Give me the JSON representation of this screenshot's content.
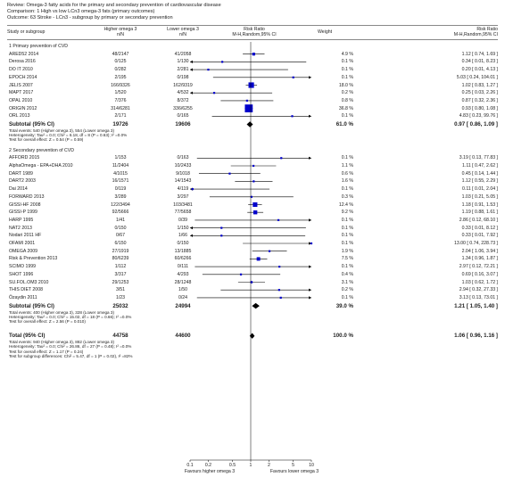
{
  "review": {
    "review_line": "Review: Omega-3 fatty acids for the primary and secondary prevention of cardiovascular disease",
    "comparison_line": "Comparison: 1 High vs low LCn3 omega-3 fats (primary outcomes)",
    "outcome_line": "Outcome: 63 Stroke - LCn3 - subgroup by primary or secondary prevention"
  },
  "columns": {
    "study": "Study or subgroup",
    "high": "Higher omega 3",
    "low": "Lower omega 3",
    "nN": "n/N",
    "rr": "Risk Ratio",
    "rr_method": "M-H,Random,95% CI",
    "weight": "Weight",
    "rr2": "Risk Ratio",
    "rr2_method": "M-H,Random,95% CI"
  },
  "axis": {
    "ticks": [
      "0.1",
      "0.2",
      "0.5",
      "1",
      "2",
      "5",
      "10"
    ],
    "favours_left": "Favours higher omega 3",
    "favours_right": "Favours lower omega 3"
  },
  "colors": {
    "study_marker": "#0000cc",
    "diamond": "#000000"
  },
  "chart_data": {
    "type": "forest",
    "scale": "log",
    "xlim": [
      0.1,
      10
    ],
    "null_line": 1,
    "subgroups": [
      {
        "heading": "1 Primary prevention of CVD",
        "studies": [
          {
            "name": "ARED52 2014",
            "high": "48/2147",
            "low": "41/2058",
            "weight": "4.9 %",
            "ci_text": "1.12 [ 0.74, 1.69 ]",
            "rr": 1.12,
            "lo": 0.74,
            "hi": 1.69,
            "w": 4.9
          },
          {
            "name": "Derosa 2016",
            "high": "0/125",
            "low": "1/130",
            "weight": "0.1 %",
            "ci_text": "0.34 [ 0.01, 8.23 ]",
            "rr": 0.34,
            "lo": 0.01,
            "hi": 8.23,
            "w": 0.1
          },
          {
            "name": "DO IT 2010",
            "high": "0/282",
            "low": "2/281",
            "weight": "0.1 %",
            "ci_text": "0.20 [ 0.01, 4.13 ]",
            "rr": 0.2,
            "lo": 0.01,
            "hi": 4.13,
            "w": 0.1
          },
          {
            "name": "EPOCH 2014",
            "high": "2/195",
            "low": "0/198",
            "weight": "0.1 %",
            "ci_text": "5.03 [ 0.24, 104.01 ]",
            "rr": 5.03,
            "lo": 0.24,
            "hi": 104.01,
            "w": 0.1
          },
          {
            "name": "JELIS 2007",
            "high": "166/9326",
            "low": "162/9319",
            "weight": "18.0 %",
            "ci_text": "1.02 [ 0.83, 1.27 ]",
            "rr": 1.02,
            "lo": 0.83,
            "hi": 1.27,
            "w": 18.0
          },
          {
            "name": "MAPT 2017",
            "high": "1/520",
            "low": "4/532",
            "weight": "0.2 %",
            "ci_text": "0.25 [ 0.03, 2.26 ]",
            "rr": 0.25,
            "lo": 0.03,
            "hi": 2.26,
            "w": 0.2
          },
          {
            "name": "OPAL 2010",
            "high": "7/376",
            "low": "8/372",
            "weight": "0.8 %",
            "ci_text": "0.87 [ 0.32, 2.36 ]",
            "rr": 0.87,
            "lo": 0.32,
            "hi": 2.36,
            "w": 0.8
          },
          {
            "name": "ORIGIN 2012",
            "high": "314/6281",
            "low": "336/6255",
            "weight": "36.8 %",
            "ci_text": "0.93 [ 0.80, 1.08 ]",
            "rr": 0.93,
            "lo": 0.8,
            "hi": 1.08,
            "w": 36.8
          },
          {
            "name": "ORL 2013",
            "high": "2/171",
            "low": "0/165",
            "weight": "0.1 %",
            "ci_text": "4.83 [ 0.23, 99.76 ]",
            "rr": 4.83,
            "lo": 0.23,
            "hi": 99.76,
            "w": 0.1
          }
        ],
        "subtotal": {
          "label": "Subtotal (95% CI)",
          "high": "19726",
          "low": "19606",
          "weight": "61.0 %",
          "ci_text": "0.97 [ 0.86, 1.09 ]",
          "rr": 0.97,
          "lo": 0.86,
          "hi": 1.09
        },
        "notes": [
          "Total events: 540 (Higher omega 3), 554 (Lower omega 3)",
          "Heterogeneity: Tau² = 0.0; Chi² = 6.18, df = 8 (P = 0.63); I² =0.0%",
          "Test for overall effect: Z = 0.54 (P = 0.59)"
        ]
      },
      {
        "heading": "2 Secondary prevention of CVD",
        "studies": [
          {
            "name": "AFFORD 2015",
            "high": "1/153",
            "low": "0/163",
            "weight": "0.1 %",
            "ci_text": "3.19 [ 0.13, 77.83 ]",
            "rr": 3.19,
            "lo": 0.13,
            "hi": 77.83,
            "w": 0.1
          },
          {
            "name": "AlphaOmega - EPA+DHA 2010",
            "high": "11/2404",
            "low": "10/2433",
            "weight": "1.1 %",
            "ci_text": "1.11 [ 0.47, 2.62 ]",
            "rr": 1.11,
            "lo": 0.47,
            "hi": 2.62,
            "w": 1.1
          },
          {
            "name": "DART 1989",
            "high": "4/1015",
            "low": "9/1018",
            "weight": "0.6 %",
            "ci_text": "0.45 [ 0.14, 1.44 ]",
            "rr": 0.45,
            "lo": 0.14,
            "hi": 1.44,
            "w": 0.6
          },
          {
            "name": "DART2 2003",
            "high": "16/1571",
            "low": "14/1543",
            "weight": "1.6 %",
            "ci_text": "1.12 [ 0.55, 2.29 ]",
            "rr": 1.12,
            "lo": 0.55,
            "hi": 2.29,
            "w": 1.6
          },
          {
            "name": "Dai 2014",
            "high": "0/119",
            "low": "4/119",
            "weight": "0.1 %",
            "ci_text": "0.11 [ 0.01, 2.04 ]",
            "rr": 0.11,
            "lo": 0.01,
            "hi": 2.04,
            "w": 0.1
          },
          {
            "name": "FORWARD 2013",
            "high": "3/289",
            "low": "3/297",
            "weight": "0.3 %",
            "ci_text": "1.03 [ 0.21, 5.05 ]",
            "rr": 1.03,
            "lo": 0.21,
            "hi": 5.05,
            "w": 0.3
          },
          {
            "name": "GISSI-HF 2008",
            "high": "122/3494",
            "low": "103/3481",
            "weight": "12.4 %",
            "ci_text": "1.18 [ 0.91, 1.53 ]",
            "rr": 1.18,
            "lo": 0.91,
            "hi": 1.53,
            "w": 12.4
          },
          {
            "name": "GISSI-P 1999",
            "high": "92/5666",
            "low": "77/5658",
            "weight": "9.2 %",
            "ci_text": "1.19 [ 0.88, 1.61 ]",
            "rr": 1.19,
            "lo": 0.88,
            "hi": 1.61,
            "w": 9.2
          },
          {
            "name": "HARP 1995",
            "high": "1/41",
            "low": "0/39",
            "weight": "0.1 %",
            "ci_text": "2.86 [ 0.12, 68.10 ]",
            "rr": 2.86,
            "lo": 0.12,
            "hi": 68.1,
            "w": 0.1
          },
          {
            "name": "NAT2 2013",
            "high": "0/150",
            "low": "1/150",
            "weight": "0.1 %",
            "ci_text": "0.33 [ 0.01, 8.12 ]",
            "rr": 0.33,
            "lo": 0.01,
            "hi": 8.12,
            "w": 0.1
          },
          {
            "name": "Nodari 2011 HF",
            "high": "0/67",
            "low": "1/66",
            "weight": "0.1 %",
            "ci_text": "0.33 [ 0.01, 7.92 ]",
            "rr": 0.33,
            "lo": 0.01,
            "hi": 7.92,
            "w": 0.1
          },
          {
            "name": "OFAMI 2001",
            "high": "6/150",
            "low": "0/150",
            "weight": "0.1 %",
            "ci_text": "13.00 [ 0.74, 228.73 ]",
            "rr": 13.0,
            "lo": 0.74,
            "hi": 228.73,
            "w": 0.1
          },
          {
            "name": "OMEGA 2009",
            "high": "27/1919",
            "low": "13/1885",
            "weight": "1.9 %",
            "ci_text": "2.04 [ 1.06, 3.94 ]",
            "rr": 2.04,
            "lo": 1.06,
            "hi": 3.94,
            "w": 1.9
          },
          {
            "name": "Risk & Prevention 2013",
            "high": "80/6239",
            "low": "60/6266",
            "weight": "7.5 %",
            "ci_text": "1.34 [ 0.96, 1.87 ]",
            "rr": 1.34,
            "lo": 0.96,
            "hi": 1.87,
            "w": 7.5
          },
          {
            "name": "SCIMO 1999",
            "high": "1/112",
            "low": "0/111",
            "weight": "0.1 %",
            "ci_text": "2.97 [ 0.12, 72.21 ]",
            "rr": 2.97,
            "lo": 0.12,
            "hi": 72.21,
            "w": 0.1
          },
          {
            "name": "SHOT 1996",
            "high": "3/317",
            "low": "4/293",
            "weight": "0.4 %",
            "ci_text": "0.69 [ 0.16, 3.07 ]",
            "rr": 0.69,
            "lo": 0.16,
            "hi": 3.07,
            "w": 0.4
          },
          {
            "name": "SU.FOL.OM3 2010",
            "high": "29/1253",
            "low": "28/1248",
            "weight": "3.1 %",
            "ci_text": "1.03 [ 0.62, 1.72 ]",
            "rr": 1.03,
            "lo": 0.62,
            "hi": 1.72,
            "w": 3.1
          },
          {
            "name": "THIS DIET 2008",
            "high": "3/51",
            "low": "1/50",
            "weight": "0.2 %",
            "ci_text": "2.94 [ 0.32, 27.33 ]",
            "rr": 2.94,
            "lo": 0.32,
            "hi": 27.33,
            "w": 0.2
          },
          {
            "name": "Özaydin 2011",
            "high": "1/23",
            "low": "0/24",
            "weight": "0.1 %",
            "ci_text": "3.13 [ 0.13, 73.01 ]",
            "rr": 3.13,
            "lo": 0.13,
            "hi": 73.01,
            "w": 0.1
          }
        ],
        "subtotal": {
          "label": "Subtotal (95% CI)",
          "high": "25032",
          "low": "24994",
          "weight": "39.0 %",
          "ci_text": "1.21 [ 1.05, 1.40 ]",
          "rr": 1.21,
          "lo": 1.05,
          "hi": 1.4
        },
        "notes": [
          "Total events: 400 (Higher omega 3), 328 (Lower omega 3)",
          "Heterogeneity: Tau² = 0.0; Chi² = 15.02, df = 18 (P = 0.66); I² =0.0%",
          "Test for overall effect: Z = 2.56 (P = 0.010)"
        ]
      }
    ],
    "total": {
      "label": "Total (95% CI)",
      "high": "44758",
      "low": "44600",
      "weight": "100.0 %",
      "ci_text": "1.06 [ 0.96, 1.16 ]",
      "rr": 1.06,
      "lo": 0.96,
      "hi": 1.16
    },
    "total_notes": [
      "Total events: 940 (Higher omega 3), 882 (Lower omega 3)",
      "Heterogeneity: Tau² = 0.0; Chi² = 26.86, df = 27 (P = 0.48); I² =0.0%",
      "Test for overall effect: Z = 1.17 (P = 0.24)",
      "Test for subgroup differences: Chi² = 5.47, df = 1 (P = 0.02), I² =82%"
    ]
  }
}
